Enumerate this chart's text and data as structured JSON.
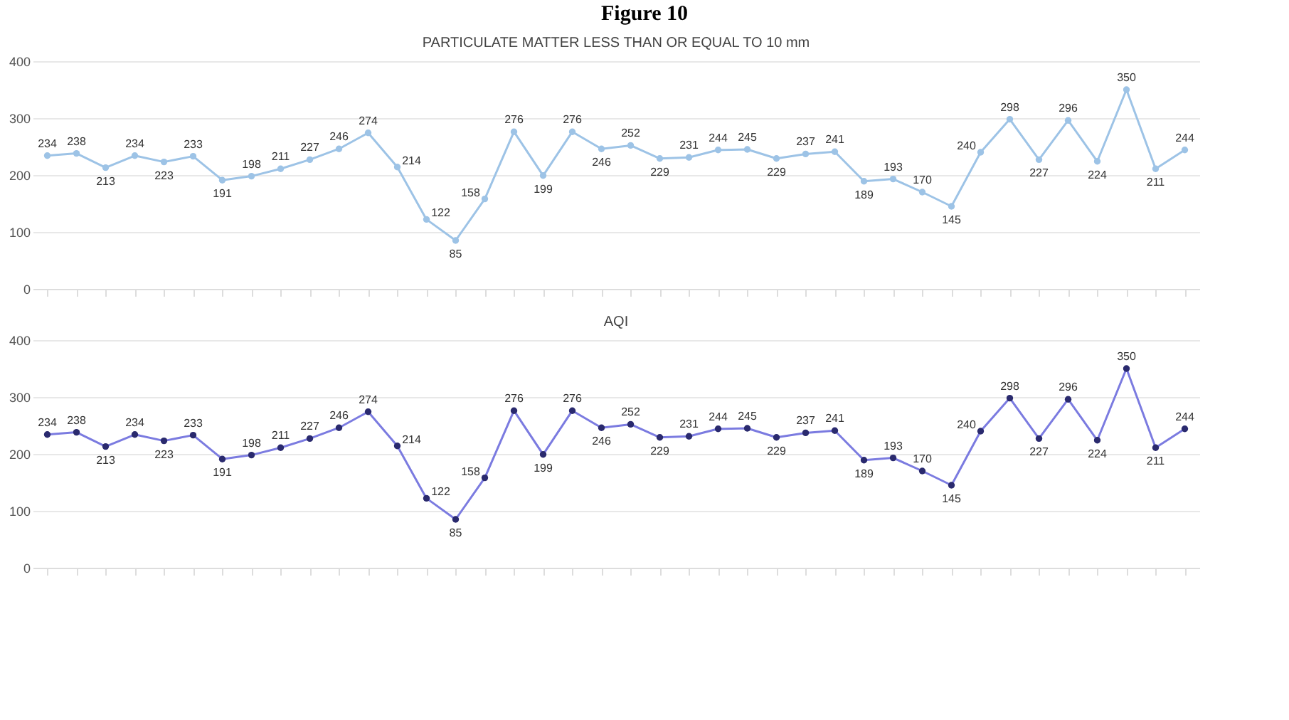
{
  "chart_data": [
    {
      "type": "line",
      "title": "PARTICULATE MATTER LESS THAN OR EQUAL TO 10 mm",
      "annotations": [
        "Figure 10"
      ],
      "categories": [
        null,
        null,
        null,
        null,
        null,
        null,
        null,
        null,
        null,
        null,
        null,
        null,
        null,
        null,
        null,
        null,
        null,
        null,
        null,
        null,
        null,
        null,
        null,
        null,
        null,
        null,
        null,
        null,
        null,
        null,
        null,
        null,
        null,
        null,
        null,
        null,
        null,
        null,
        null,
        null
      ],
      "series": [
        {
          "color": "#9dc3e6",
          "values": [
            234,
            238,
            213,
            234,
            223,
            233,
            191,
            198,
            211,
            227,
            246,
            274,
            214,
            122,
            85,
            158,
            276,
            199,
            276,
            246,
            252,
            229,
            231,
            244,
            245,
            229,
            237,
            241,
            189,
            193,
            170,
            145,
            240,
            298,
            227,
            296,
            224,
            350,
            211,
            244
          ]
        }
      ],
      "ylim": [
        0,
        400
      ],
      "yticks": [
        0,
        100,
        200,
        300,
        400
      ],
      "grid": "y",
      "tick_labels": "y",
      "marker": "circle",
      "data_labels": true
    },
    {
      "type": "line",
      "title": "AQI",
      "categories": [
        null,
        null,
        null,
        null,
        null,
        null,
        null,
        null,
        null,
        null,
        null,
        null,
        null,
        null,
        null,
        null,
        null,
        null,
        null,
        null,
        null,
        null,
        null,
        null,
        null,
        null,
        null,
        null,
        null,
        null,
        null,
        null,
        null,
        null,
        null,
        null,
        null,
        null,
        null,
        null
      ],
      "series": [
        {
          "color": "#7b7be0",
          "values": [
            234,
            238,
            213,
            234,
            223,
            233,
            191,
            198,
            211,
            227,
            246,
            274,
            214,
            122,
            85,
            158,
            276,
            199,
            276,
            246,
            252,
            229,
            231,
            244,
            245,
            229,
            237,
            241,
            189,
            193,
            170,
            145,
            240,
            298,
            227,
            296,
            224,
            350,
            211,
            244
          ]
        }
      ],
      "ylim": [
        0,
        400
      ],
      "yticks": [
        0,
        100,
        200,
        300,
        400
      ],
      "grid": "y",
      "tick_labels": "y",
      "marker": "circle",
      "data_labels": true
    }
  ]
}
